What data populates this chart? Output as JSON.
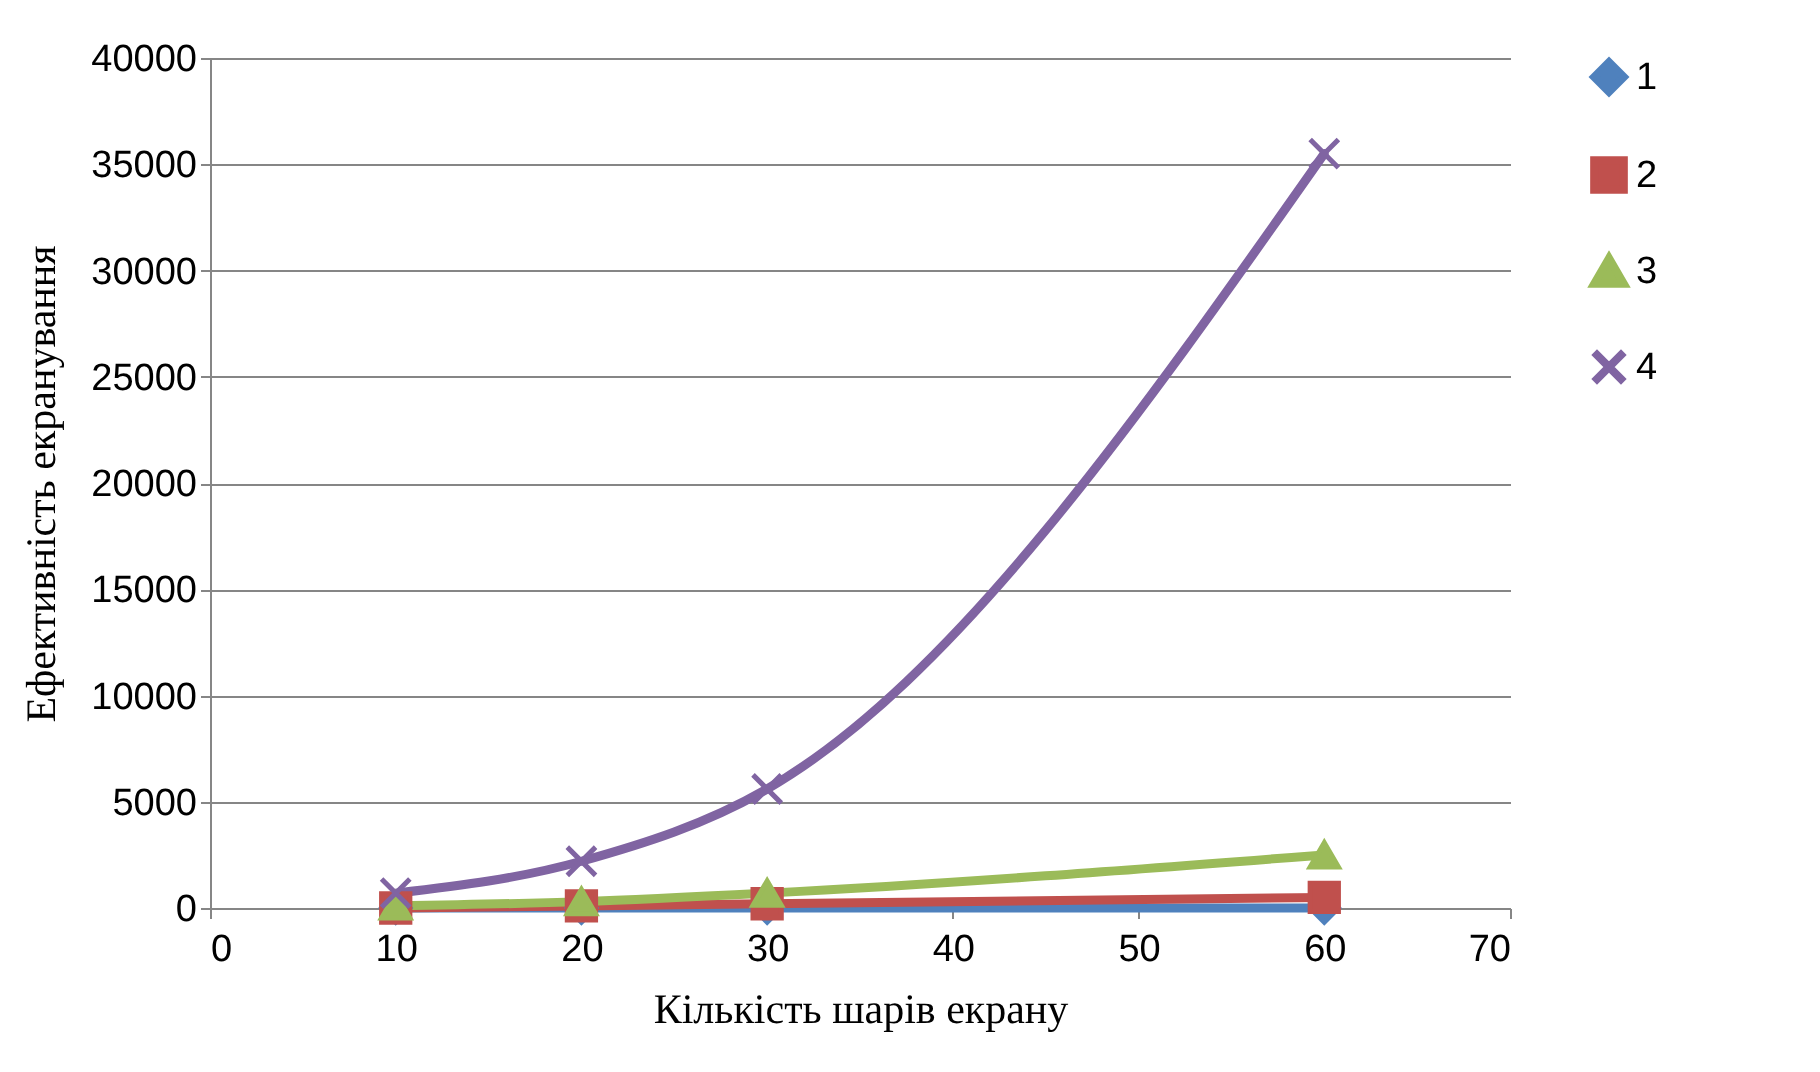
{
  "chart_data": {
    "type": "line",
    "xlabel": "Кількість шарів екрану",
    "ylabel": "Ефективність екранування",
    "x": [
      10,
      20,
      30,
      60
    ],
    "series": [
      {
        "name": "1",
        "color": "#4f81bd",
        "marker": "diamond",
        "values": [
          0,
          0,
          0,
          0
        ]
      },
      {
        "name": "2",
        "color": "#c0504d",
        "marker": "square",
        "values": [
          0,
          100,
          200,
          500
        ]
      },
      {
        "name": "3",
        "color": "#9bbb59",
        "marker": "triangle",
        "values": [
          100,
          300,
          700,
          2500
        ]
      },
      {
        "name": "4",
        "color": "#8064a2",
        "marker": "cross",
        "values": [
          700,
          2200,
          5600,
          35500
        ]
      }
    ],
    "xlim": [
      0,
      70
    ],
    "xticks": [
      0,
      10,
      20,
      30,
      40,
      50,
      60,
      70
    ],
    "ylim": [
      0,
      40000
    ],
    "yticks": [
      0,
      5000,
      10000,
      15000,
      20000,
      25000,
      30000,
      35000,
      40000
    ],
    "grid": "y",
    "legend": "right"
  }
}
